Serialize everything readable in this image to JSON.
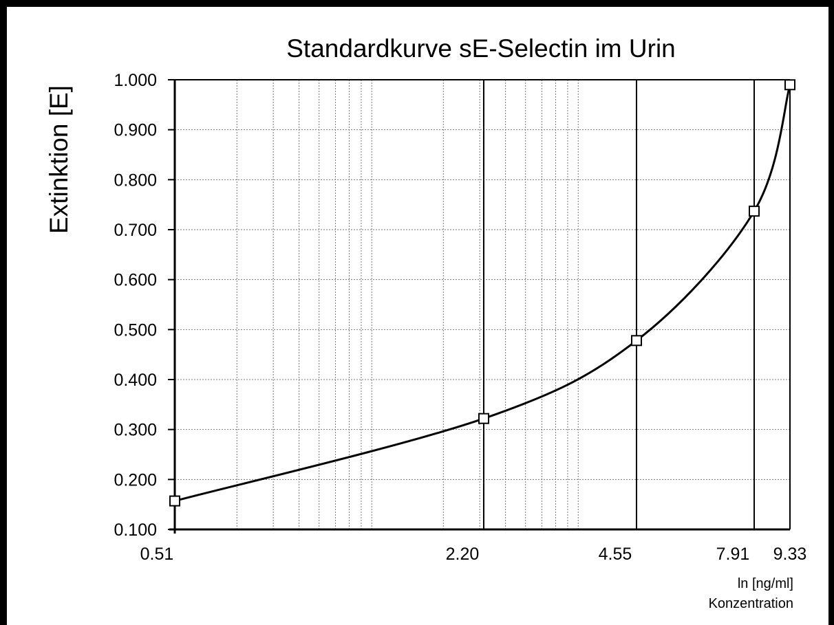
{
  "chart_data": {
    "type": "line",
    "title": "Standardkurve sE-Selectin im Urin",
    "ylabel": "Extinktion [E]",
    "xlabel_unit": "ln [ng/ml]",
    "xlabel": "Konzentration",
    "xlim": [
      0.51,
      9.33
    ],
    "ylim": [
      0.1,
      1.0
    ],
    "y_ticks": [
      "0.100",
      "0.200",
      "0.300",
      "0.400",
      "0.500",
      "0.600",
      "0.700",
      "0.800",
      "0.900",
      "1.000"
    ],
    "x_ticks": [
      "0.51",
      "2.20",
      "4.55",
      "7.91",
      "9.33"
    ],
    "grid": true,
    "series": [
      {
        "points": [
          {
            "x": 0.51,
            "y": 0.157
          },
          {
            "x": 2.2,
            "y": 0.322
          },
          {
            "x": 4.55,
            "y": 0.478
          },
          {
            "x": 7.91,
            "y": 0.737
          },
          {
            "x": 9.33,
            "y": 0.99
          }
        ]
      }
    ]
  }
}
